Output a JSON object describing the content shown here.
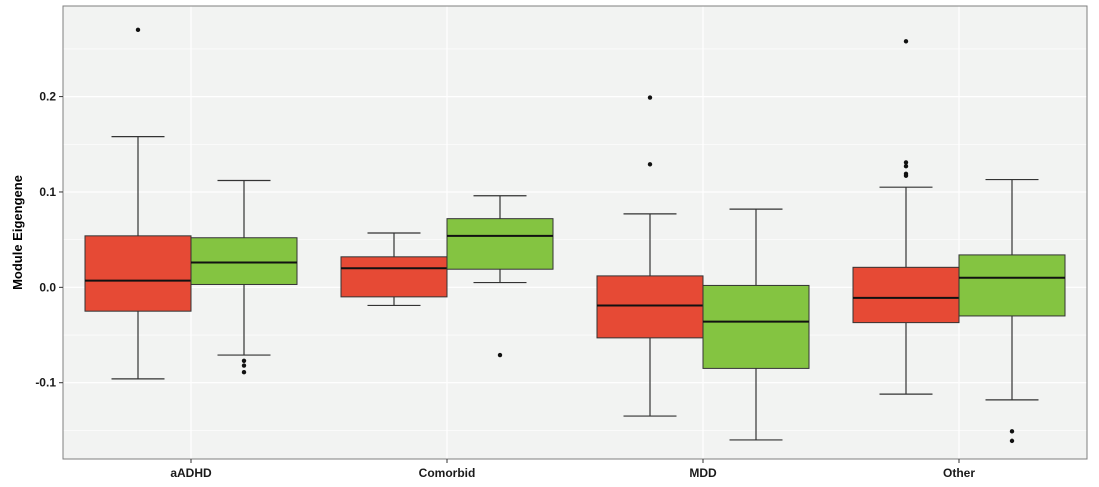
{
  "chart_data": {
    "type": "boxplot",
    "title": "",
    "xlabel": "",
    "ylabel": "Module Eigengene",
    "ylim": [
      -0.18,
      0.295
    ],
    "y_ticks": [
      {
        "value": 0.2,
        "label": "0.2"
      },
      {
        "value": 0.1,
        "label": "0.1"
      },
      {
        "value": 0.0,
        "label": "0.0"
      },
      {
        "value": -0.1,
        "label": "-0.1"
      }
    ],
    "categories": [
      "aADHD",
      "Comorbid",
      "MDD",
      "Other"
    ],
    "series": [
      {
        "color": "#e64a35",
        "boxes": [
          {
            "whisker_low": -0.096,
            "q1": -0.025,
            "median": 0.007,
            "q3": 0.054,
            "whisker_high": 0.158,
            "outliers": [
              0.27
            ]
          },
          {
            "whisker_low": -0.019,
            "q1": -0.01,
            "median": 0.02,
            "q3": 0.032,
            "whisker_high": 0.057,
            "outliers": []
          },
          {
            "whisker_low": -0.135,
            "q1": -0.053,
            "median": -0.019,
            "q3": 0.012,
            "whisker_high": 0.077,
            "outliers": [
              0.199,
              0.129
            ]
          },
          {
            "whisker_low": -0.112,
            "q1": -0.037,
            "median": -0.011,
            "q3": 0.021,
            "whisker_high": 0.105,
            "outliers": [
              0.258,
              0.131,
              0.127,
              0.119,
              0.117
            ]
          }
        ]
      },
      {
        "color": "#84c441",
        "boxes": [
          {
            "whisker_low": -0.071,
            "q1": 0.003,
            "median": 0.026,
            "q3": 0.052,
            "whisker_high": 0.112,
            "outliers": [
              -0.077,
              -0.082,
              -0.089
            ]
          },
          {
            "whisker_low": 0.005,
            "q1": 0.019,
            "median": 0.054,
            "q3": 0.072,
            "whisker_high": 0.096,
            "outliers": [
              -0.071
            ]
          },
          {
            "whisker_low": -0.16,
            "q1": -0.085,
            "median": -0.036,
            "q3": 0.002,
            "whisker_high": 0.082,
            "outliers": []
          },
          {
            "whisker_low": -0.118,
            "q1": -0.03,
            "median": 0.01,
            "q3": 0.034,
            "whisker_high": 0.113,
            "outliers": [
              -0.151,
              -0.161
            ]
          }
        ]
      }
    ],
    "grid": true,
    "legend": false,
    "panel_background": "#f2f3f2"
  }
}
